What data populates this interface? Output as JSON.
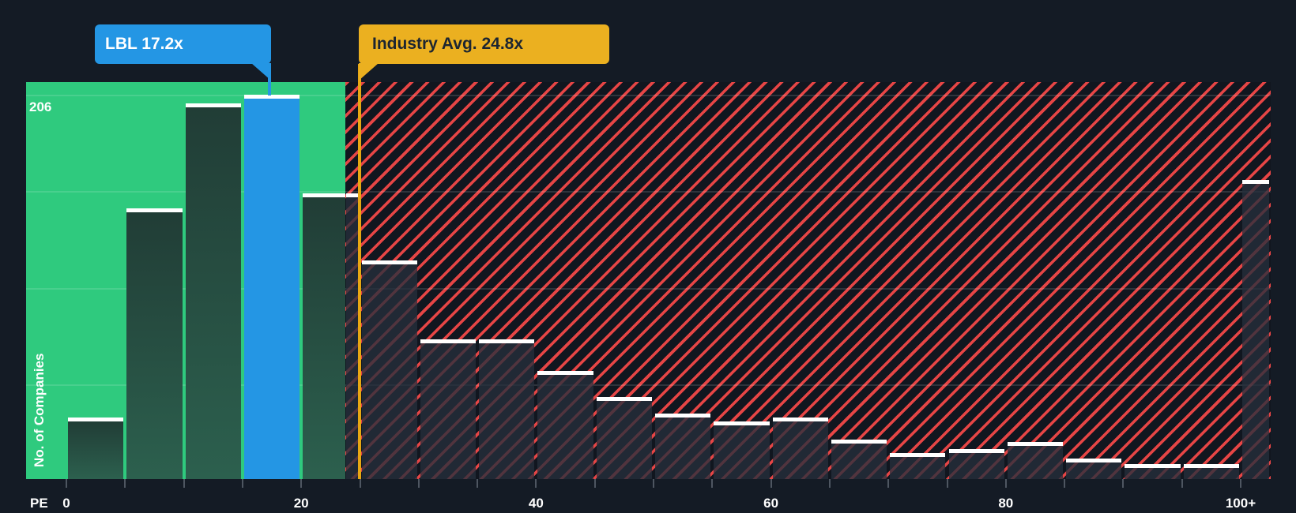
{
  "chart_data": {
    "type": "bar",
    "xlabel": "PE",
    "ylabel": "No. of Companies",
    "x_tick_labels": [
      "0",
      "20",
      "40",
      "60",
      "80",
      "100+"
    ],
    "y_top_gridline_label": "206",
    "ylim": [
      0,
      206
    ],
    "grid": "4 horizontal gridlines, top gridline = 206",
    "legend_position": "none",
    "categories": [
      "0-5",
      "5-10",
      "10-15",
      "15-20",
      "20-25",
      "25-30",
      "30-35",
      "35-40",
      "40-45",
      "45-50",
      "50-55",
      "55-60",
      "60-65",
      "65-70",
      "70-75",
      "75-80",
      "80-85",
      "85-90",
      "90-95",
      "95-100",
      "100+"
    ],
    "values": [
      33,
      145,
      201,
      206,
      153,
      117,
      75,
      75,
      58,
      44,
      35,
      31,
      33,
      21,
      14,
      16,
      20,
      11,
      8,
      8,
      160
    ],
    "company_marker": {
      "label": "LBL 17.2x",
      "pe": 17.2,
      "highlighted_bin": "15-20",
      "color": "#2496e4"
    },
    "industry_marker": {
      "label": "Industry Avg. 24.8x",
      "pe": 24.8,
      "line_color": "#e8a713",
      "box_color": "#ebb020"
    },
    "regions": {
      "below_avg_fill": "#2fca7e",
      "above_avg_style": "red diagonal hatch",
      "hatch_stripe_color": "#e64545",
      "hatch_background": "#11161f"
    },
    "colors": {
      "page_background": "#141b25",
      "bar_below_avg_gradient": [
        "#213d36",
        "#2c604e"
      ],
      "bar_above_avg_fill": "rgba(38,47,60,0.78)",
      "bar_top_line": "#ffffff",
      "tick": "#4e5661",
      "axis_text": "#ffffff"
    }
  }
}
